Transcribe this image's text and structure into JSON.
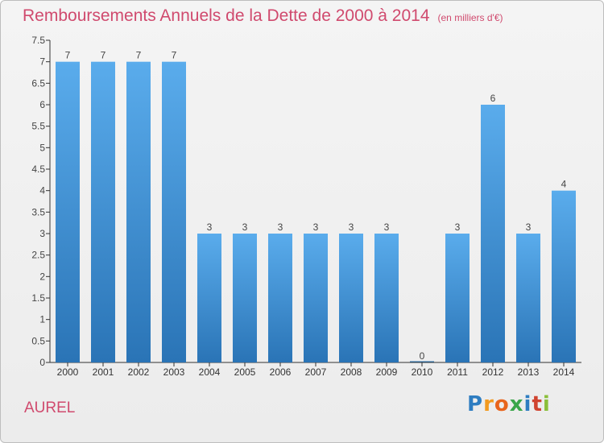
{
  "title": "Remboursements Annuels de la Dette de 2000 à 2014",
  "unit_note": "(en milliers d'€)",
  "town": "AUREL",
  "brand": {
    "name": "Proxiti",
    "letters": [
      "P",
      "r",
      "o",
      "x",
      "i",
      "t",
      "i"
    ],
    "colors": [
      "#2e7dc1",
      "#f29a1f",
      "#e8641c",
      "#3aa64a",
      "#2e7dc1",
      "#d0432f",
      "#8bbf3a"
    ]
  },
  "colors": {
    "title": "#d04a6e",
    "bar_light": "#5aacec",
    "bar_dark": "#2a74b6",
    "axis": "#333333",
    "grid": "#d8d8d8"
  },
  "chart_data": {
    "type": "bar",
    "title": "Remboursements Annuels de la Dette de 2000 à 2014",
    "subtitle": "(en milliers d'€)",
    "categories": [
      "2000",
      "2001",
      "2002",
      "2003",
      "2004",
      "2005",
      "2006",
      "2007",
      "2008",
      "2009",
      "2010",
      "2011",
      "2012",
      "2013",
      "2014"
    ],
    "values": [
      7,
      7,
      7,
      7,
      3,
      3,
      3,
      3,
      3,
      3,
      0,
      3,
      6,
      3,
      4
    ],
    "data_labels": [
      "7",
      "7",
      "7",
      "7",
      "3",
      "3",
      "3",
      "3",
      "3",
      "3",
      "0",
      "3",
      "6",
      "3",
      "4"
    ],
    "yticks": [
      "0",
      "0.5",
      "1",
      "1.5",
      "2",
      "2.5",
      "3",
      "3.5",
      "4",
      "4.5",
      "5",
      "5.5",
      "6",
      "6.5",
      "7",
      "7.5"
    ],
    "ytick_values": [
      0,
      0.5,
      1,
      1.5,
      2,
      2.5,
      3,
      3.5,
      4,
      4.5,
      5,
      5.5,
      6,
      6.5,
      7,
      7.5
    ],
    "ylim": [
      0,
      7.5
    ],
    "xlabel": "",
    "ylabel": "",
    "grid": false,
    "legend": "none"
  }
}
